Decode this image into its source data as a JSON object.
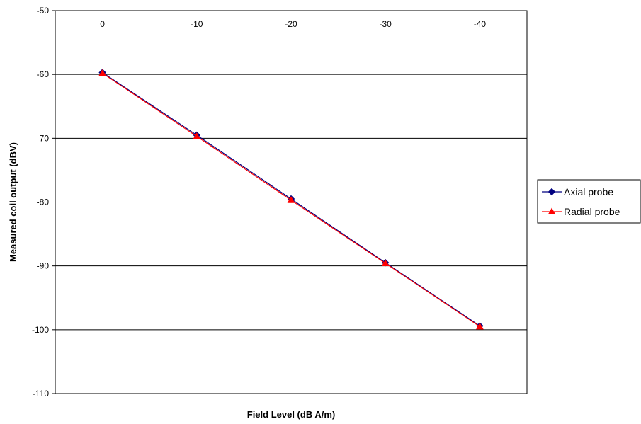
{
  "chart_data": {
    "type": "line",
    "xlabel": "Field Level (dB A/m)",
    "ylabel": "Measured coil output (dBV)",
    "categories": [
      "0",
      "-10",
      "-20",
      "-30",
      "-40"
    ],
    "ylim": [
      -110,
      -50
    ],
    "yticks": [
      -50,
      -60,
      -70,
      -80,
      -90,
      -100,
      -110
    ],
    "x_tick_position": "top",
    "grid": "horizontal",
    "legend_position": "right",
    "series": [
      {
        "name": "Axial probe",
        "values": [
          -59.7,
          -69.5,
          -79.5,
          -89.5,
          -99.4
        ],
        "color": "#000080",
        "marker": "diamond"
      },
      {
        "name": "Radial probe",
        "values": [
          -59.8,
          -69.7,
          -79.7,
          -89.6,
          -99.5
        ],
        "color": "#ff0000",
        "marker": "triangle"
      }
    ]
  }
}
